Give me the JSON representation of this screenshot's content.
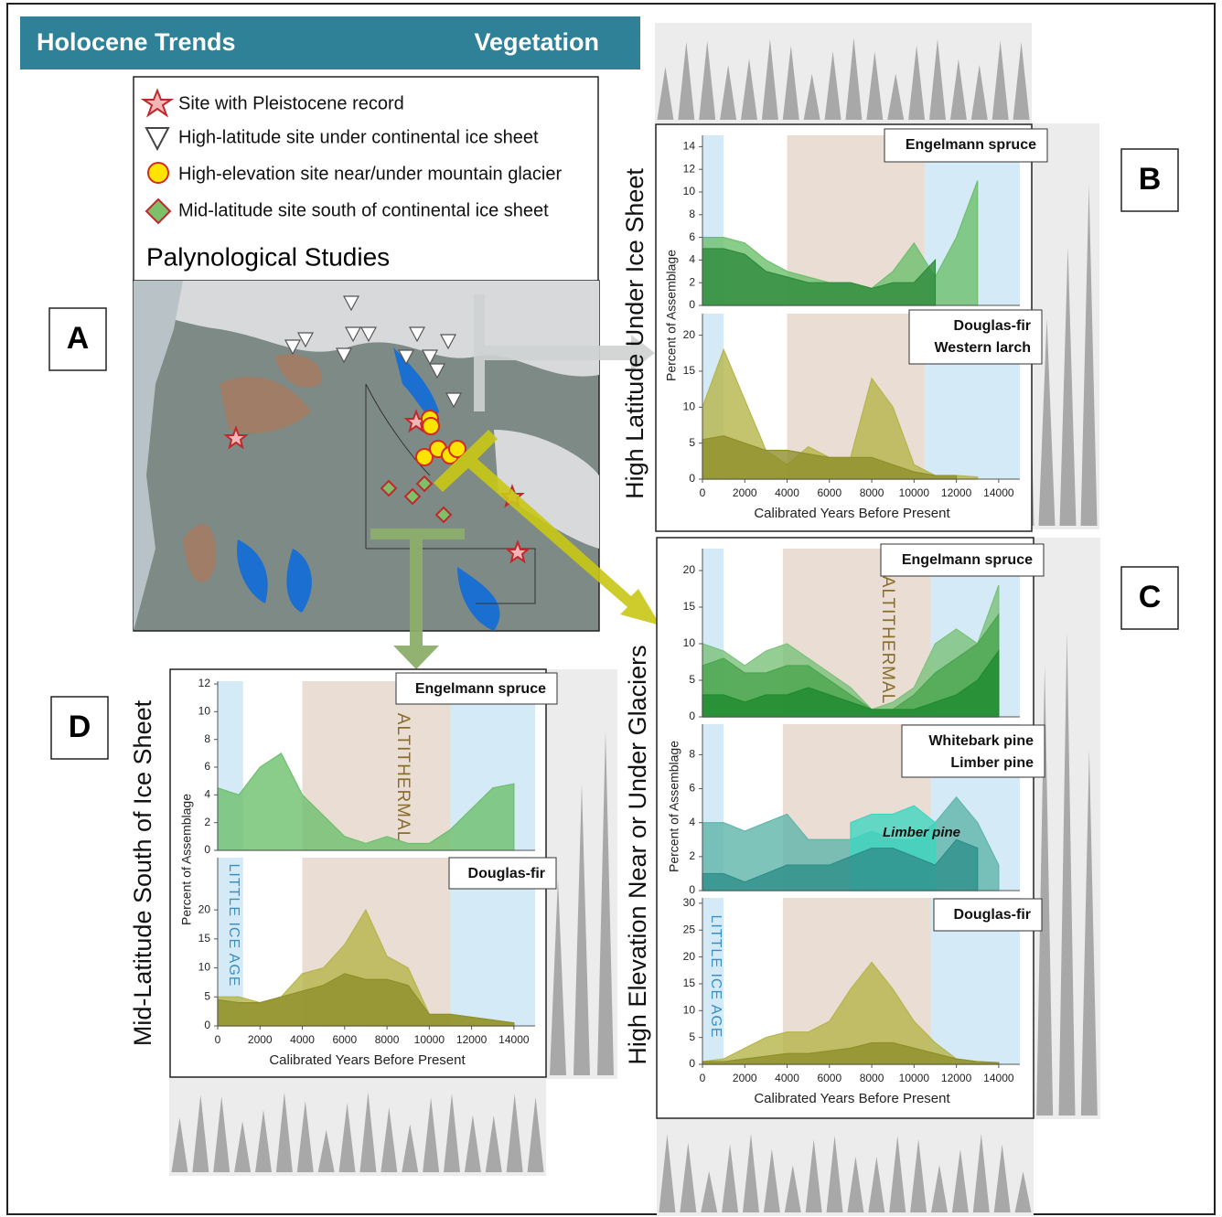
{
  "header": {
    "left": "Holocene Trends",
    "right": "Vegetation"
  },
  "legend": [
    "Site with Pleistocene record",
    "High-latitude site under continental ice sheet",
    "High-elevation site near/under mountain glacier",
    "Mid-latitude site south of continental ice sheet"
  ],
  "map_title": "Palynological Studies",
  "panel_letters": [
    "A",
    "B",
    "C",
    "D"
  ],
  "side_titles": {
    "b": "High Latitude Under Ice Sheet",
    "c": "High Elevation Near or Under Glaciers",
    "d": "Mid-Latitude South of Ice Sheet"
  },
  "chart_data": [
    {
      "type": "area",
      "title_lines": [
        "Engelmann spruce"
      ],
      "ylabel": "Percent of Assemblage",
      "x": [
        0,
        1000,
        2000,
        3000,
        4000,
        5000,
        6000,
        7000,
        8000,
        9000,
        10000,
        11000,
        12000,
        13000,
        14000
      ],
      "series": [
        {
          "color": "#6dbf6d",
          "values": [
            6,
            6,
            5.5,
            4,
            3,
            2.5,
            2,
            2,
            1.5,
            3,
            5.5,
            2.5,
            6,
            11,
            null
          ]
        },
        {
          "color": "#2e8b3c",
          "values": [
            5,
            5,
            4.5,
            3,
            2.5,
            2,
            2,
            2,
            1.5,
            2,
            2,
            4,
            null,
            null,
            null
          ]
        }
      ],
      "bands": [
        {
          "from": 0,
          "to": 1000,
          "color": "#d4eaf6"
        },
        {
          "from": 4000,
          "to": 10500,
          "color": "#e9ddd4"
        },
        {
          "from": 10500,
          "to": 15000,
          "color": "#d4eaf6"
        }
      ],
      "xlim": [
        0,
        15000
      ],
      "ylim": [
        0,
        15
      ],
      "yticks": [
        0,
        2,
        4,
        6,
        8,
        10,
        12,
        14
      ]
    },
    {
      "type": "area",
      "title_lines": [
        "Douglas-fir",
        "Western larch"
      ],
      "xlabel": "Calibrated Years Before Present",
      "x": [
        0,
        1000,
        2000,
        3000,
        4000,
        5000,
        6000,
        7000,
        8000,
        9000,
        10000,
        11000,
        12000,
        13000,
        14000
      ],
      "series": [
        {
          "color": "#b5b54a",
          "values": [
            10,
            18,
            11,
            4,
            2,
            4.5,
            3,
            3,
            14,
            10,
            2,
            0.5,
            0.5,
            0.3,
            null
          ]
        },
        {
          "color": "#8f8f2a",
          "values": [
            5.5,
            6,
            5,
            4,
            4,
            3.5,
            3,
            3,
            3,
            2,
            1,
            0.5,
            0.5,
            null,
            null
          ]
        }
      ],
      "bands": [
        {
          "from": 0,
          "to": 1000,
          "color": "#d4eaf6"
        },
        {
          "from": 4000,
          "to": 10500,
          "color": "#e9ddd4"
        },
        {
          "from": 10500,
          "to": 15000,
          "color": "#d4eaf6"
        }
      ],
      "xlim": [
        0,
        15000
      ],
      "ylim": [
        0,
        23
      ],
      "yticks": [
        0,
        5,
        10,
        15,
        20
      ],
      "xticks": [
        0,
        2000,
        4000,
        6000,
        8000,
        10000,
        12000,
        14000
      ]
    },
    {
      "type": "area",
      "title_lines": [
        "Engelmann spruce"
      ],
      "annotation": "ALTITHERMAL",
      "x": [
        0,
        1000,
        2000,
        3000,
        4000,
        5000,
        6000,
        7000,
        8000,
        9000,
        10000,
        11000,
        12000,
        13000,
        14000
      ],
      "series": [
        {
          "color": "#7ac27a",
          "values": [
            10,
            9,
            7,
            9,
            10,
            8,
            6,
            4,
            1,
            2,
            4,
            10,
            12,
            10,
            18
          ]
        },
        {
          "color": "#4aa54e",
          "values": [
            7,
            8,
            6,
            6,
            7,
            7,
            5,
            3,
            1,
            1,
            3,
            6,
            8,
            10,
            14
          ]
        },
        {
          "color": "#1e8a2e",
          "values": [
            3,
            3,
            2,
            3,
            3,
            4,
            3,
            2,
            1,
            1,
            1,
            2,
            3,
            5,
            9
          ]
        }
      ],
      "bands": [
        {
          "from": 0,
          "to": 1000,
          "color": "#d4eaf6"
        },
        {
          "from": 3800,
          "to": 10800,
          "color": "#e9ddd4"
        },
        {
          "from": 10800,
          "to": 15000,
          "color": "#d4eaf6"
        }
      ],
      "xlim": [
        0,
        15000
      ],
      "ylim": [
        0,
        23
      ],
      "yticks": [
        0,
        5,
        10,
        15,
        20
      ]
    },
    {
      "type": "area",
      "title_lines": [
        "Whitebark pine",
        "Limber pine"
      ],
      "ylabel": "Percent of Assemblage",
      "annotation": "Limber pine",
      "x": [
        0,
        1000,
        2000,
        3000,
        4000,
        5000,
        6000,
        7000,
        8000,
        9000,
        10000,
        11000,
        12000,
        13000,
        14000
      ],
      "series": [
        {
          "color": "#5fb5aa",
          "values": [
            4,
            4,
            3.5,
            4,
            4.5,
            3,
            3,
            3,
            3.5,
            3,
            3,
            4,
            5.5,
            4,
            1.5
          ]
        },
        {
          "color": "#3fd6bf",
          "values": [
            null,
            null,
            null,
            null,
            null,
            null,
            null,
            4,
            4.5,
            4.5,
            5,
            4,
            null,
            null,
            null
          ]
        },
        {
          "color": "#2e8f8a",
          "values": [
            1,
            1,
            0.5,
            1,
            1.5,
            1.5,
            1.5,
            2,
            2.5,
            2.5,
            2,
            1.5,
            3,
            2.5,
            null
          ]
        }
      ],
      "bands": [
        {
          "from": 0,
          "to": 1000,
          "color": "#d4eaf6"
        },
        {
          "from": 3800,
          "to": 10800,
          "color": "#e9ddd4"
        },
        {
          "from": 10800,
          "to": 15000,
          "color": "#d4eaf6"
        }
      ],
      "xlim": [
        0,
        15000
      ],
      "ylim": [
        0,
        9.8
      ],
      "yticks": [
        0,
        2,
        4,
        6,
        8
      ]
    },
    {
      "type": "area",
      "title_lines": [
        "Douglas-fir"
      ],
      "annotation": "LITTLE ICE AGE",
      "xlabel": "Calibrated Years Before Present",
      "x": [
        0,
        1000,
        2000,
        3000,
        4000,
        5000,
        6000,
        7000,
        8000,
        9000,
        10000,
        11000,
        12000,
        13000,
        14000
      ],
      "series": [
        {
          "color": "#b5b54a",
          "values": [
            0.5,
            1,
            3,
            5,
            6,
            6,
            8,
            14,
            19,
            14,
            8,
            4,
            1,
            0.5,
            0.3
          ]
        },
        {
          "color": "#8f8f2a",
          "values": [
            0.5,
            0.5,
            1,
            1.5,
            2,
            2,
            2.5,
            3,
            4,
            4,
            3,
            2,
            1,
            0.5,
            0.3
          ]
        }
      ],
      "bands": [
        {
          "from": 0,
          "to": 1000,
          "color": "#d4eaf6"
        },
        {
          "from": 3800,
          "to": 10800,
          "color": "#e9ddd4"
        },
        {
          "from": 10800,
          "to": 15000,
          "color": "#d4eaf6"
        }
      ],
      "xlim": [
        0,
        15000
      ],
      "ylim": [
        0,
        31
      ],
      "yticks": [
        0,
        5,
        10,
        15,
        20,
        25,
        30
      ],
      "xticks": [
        0,
        2000,
        4000,
        6000,
        8000,
        10000,
        12000,
        14000
      ]
    },
    {
      "type": "area",
      "title_lines": [
        "Engelmann spruce"
      ],
      "annotation": "ALTITHERMAL",
      "x": [
        0,
        1000,
        2000,
        3000,
        4000,
        5000,
        6000,
        7000,
        8000,
        9000,
        10000,
        11000,
        12000,
        13000,
        14000
      ],
      "series": [
        {
          "color": "#6dbf6d",
          "values": [
            4.5,
            4,
            6,
            7,
            4,
            2.5,
            1,
            0.5,
            1,
            0.5,
            0.5,
            1.5,
            3,
            4.5,
            4.8
          ]
        }
      ],
      "bands": [
        {
          "from": 0,
          "to": 1200,
          "color": "#d4eaf6"
        },
        {
          "from": 4000,
          "to": 11000,
          "color": "#e9ddd4"
        },
        {
          "from": 11000,
          "to": 15000,
          "color": "#d4eaf6"
        }
      ],
      "xlim": [
        0,
        15000
      ],
      "ylim": [
        0,
        12.2
      ],
      "yticks": [
        0,
        2,
        4,
        6,
        8,
        10,
        12
      ]
    },
    {
      "type": "area",
      "title_lines": [
        "Douglas-fir"
      ],
      "ylabel": "Percent of Assemblage",
      "annotation": "LITTLE ICE AGE",
      "xlabel": "Calibrated Years Before Present",
      "x": [
        0,
        1000,
        2000,
        3000,
        4000,
        5000,
        6000,
        7000,
        8000,
        9000,
        10000,
        11000,
        12000,
        13000,
        14000
      ],
      "series": [
        {
          "color": "#b5b54a",
          "values": [
            5,
            5,
            4,
            5,
            9,
            10,
            14,
            20,
            12,
            10,
            2,
            2,
            1.5,
            1,
            0.5
          ]
        },
        {
          "color": "#8f8f2a",
          "values": [
            4.5,
            4,
            4,
            5,
            6,
            7,
            9,
            8,
            8,
            7,
            2,
            2,
            1.5,
            1,
            0.5
          ]
        }
      ],
      "bands": [
        {
          "from": 0,
          "to": 1200,
          "color": "#d4eaf6"
        },
        {
          "from": 4000,
          "to": 11000,
          "color": "#e9ddd4"
        },
        {
          "from": 11000,
          "to": 15000,
          "color": "#d4eaf6"
        }
      ],
      "xlim": [
        0,
        15000
      ],
      "ylim": [
        0,
        29
      ],
      "yticks": [
        0,
        5,
        10,
        15,
        20
      ],
      "xticks": [
        0,
        2000,
        4000,
        6000,
        8000,
        10000,
        12000,
        14000
      ]
    }
  ]
}
